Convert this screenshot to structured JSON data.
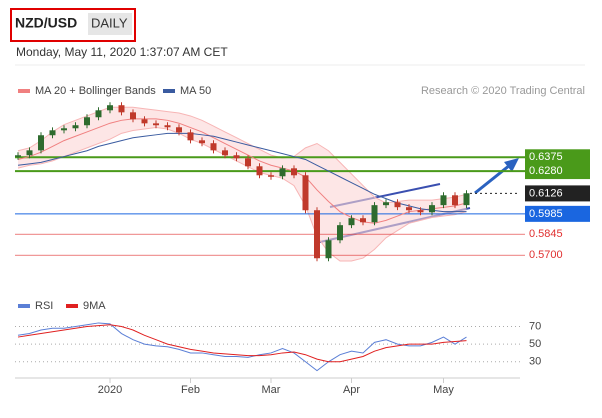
{
  "chart_data": {
    "type": "candlestick",
    "title": "NZD/USD",
    "timeframe": "DAILY",
    "subtitle": "Monday, May 11, 2020 1:37:07 AM CET",
    "credit": "Research © 2020 Trading Central",
    "categories": [
      null,
      null,
      null,
      null,
      null,
      null,
      null,
      null,
      "2020",
      null,
      null,
      null,
      null,
      null,
      null,
      "Feb",
      null,
      null,
      null,
      null,
      null,
      null,
      "Mar",
      null,
      null,
      null,
      null,
      null,
      null,
      "Apr",
      null,
      null,
      null,
      null,
      null,
      null,
      null,
      "May",
      null,
      null
    ],
    "price": {
      "up_color": "#2e6b2e",
      "down_color": "#c0392b",
      "values": [
        0.6389,
        0.6423,
        0.6527,
        0.6561,
        0.6575,
        0.6596,
        0.6651,
        0.6699,
        0.6734,
        0.6685,
        0.6637,
        0.6609,
        0.6596,
        0.6582,
        0.6547,
        0.6492,
        0.6472,
        0.6423,
        0.6389,
        0.6368,
        0.6313,
        0.6251,
        0.6244,
        0.6299,
        0.6251,
        0.601,
        0.5679,
        0.5803,
        0.5907,
        0.5955,
        0.5927,
        0.6045,
        0.6065,
        0.6031,
        0.601,
        0.5996,
        0.6045,
        0.6113,
        0.6045,
        0.6127
      ]
    },
    "series": [
      {
        "name": "MA 20 + Bollinger Bands",
        "color": "#f08080",
        "values": [
          0.636,
          0.638,
          0.641,
          0.645,
          0.649,
          0.652,
          0.655,
          0.658,
          0.661,
          0.663,
          0.664,
          0.664,
          0.664,
          0.663,
          0.661,
          0.658,
          0.655,
          0.651,
          0.647,
          0.643,
          0.639,
          0.635,
          0.632,
          0.63,
          0.628,
          0.624,
          0.615,
          0.607,
          0.6,
          0.596,
          0.593,
          0.592,
          0.594,
          0.597,
          0.6,
          0.601,
          0.602,
          0.603,
          0.604,
          0.606
        ],
        "upper": [
          0.642,
          0.644,
          0.649,
          0.655,
          0.66,
          0.663,
          0.666,
          0.669,
          0.672,
          0.672,
          0.672,
          0.671,
          0.67,
          0.669,
          0.668,
          0.666,
          0.663,
          0.659,
          0.655,
          0.651,
          0.647,
          0.643,
          0.639,
          0.637,
          0.638,
          0.644,
          0.647,
          0.642,
          0.634,
          0.626,
          0.618,
          0.61,
          0.606,
          0.607,
          0.608,
          0.608,
          0.608,
          0.609,
          0.61,
          0.612
        ],
        "lower": [
          0.63,
          0.632,
          0.633,
          0.635,
          0.638,
          0.641,
          0.644,
          0.647,
          0.65,
          0.654,
          0.656,
          0.657,
          0.658,
          0.657,
          0.654,
          0.65,
          0.647,
          0.643,
          0.639,
          0.635,
          0.631,
          0.627,
          0.625,
          0.623,
          0.618,
          0.604,
          0.583,
          0.572,
          0.566,
          0.566,
          0.568,
          0.574,
          0.582,
          0.587,
          0.592,
          0.594,
          0.596,
          0.597,
          0.598,
          0.6
        ]
      },
      {
        "name": "MA 50",
        "color": "#3a5ba0",
        "values": [
          0.632,
          0.633,
          0.634,
          0.636,
          0.638,
          0.64,
          0.642,
          0.645,
          0.647,
          0.649,
          0.651,
          0.652,
          0.653,
          0.654,
          0.654,
          0.654,
          0.653,
          0.652,
          0.65,
          0.648,
          0.646,
          0.644,
          0.642,
          0.64,
          0.638,
          0.636,
          0.632,
          0.628,
          0.624,
          0.62,
          0.616,
          0.612,
          0.609,
          0.606,
          0.604,
          0.602,
          0.601,
          0.6,
          0.6,
          0.6
        ]
      }
    ],
    "ylim": [
      0.546,
      0.677
    ],
    "levels": [
      {
        "value": 0.6375,
        "color": "#4a9a1a"
      },
      {
        "value": 0.628,
        "label": "0.6280",
        "color": "#4a9a1a"
      },
      {
        "value": 0.6126,
        "color": "#222222"
      },
      {
        "value": 0.5985,
        "color": "#1a66e0"
      },
      {
        "value": 0.5845,
        "color": "#e03030"
      },
      {
        "value": 0.57,
        "label": "0.5700",
        "color": "#e03030"
      }
    ],
    "rsi": {
      "ylim": [
        15,
        100
      ],
      "yticks": [
        30,
        50,
        70
      ],
      "series": [
        {
          "name": "RSI",
          "color": "#5b7fd6",
          "values": [
            60,
            62,
            66,
            68,
            68,
            70,
            72,
            74,
            73,
            62,
            55,
            50,
            48,
            47,
            44,
            40,
            40,
            38,
            36,
            36,
            35,
            38,
            40,
            45,
            40,
            30,
            20,
            30,
            38,
            42,
            40,
            52,
            55,
            50,
            48,
            48,
            52,
            58,
            50,
            58
          ]
        },
        {
          "name": "9MA",
          "color": "#e02020",
          "values": [
            58,
            60,
            62,
            64,
            66,
            68,
            70,
            71,
            72,
            70,
            66,
            60,
            55,
            50,
            47,
            44,
            42,
            40,
            39,
            38,
            37,
            37,
            38,
            40,
            41,
            38,
            33,
            30,
            30,
            33,
            36,
            42,
            46,
            48,
            50,
            50,
            50,
            52,
            53,
            54
          ]
        }
      ]
    }
  }
}
